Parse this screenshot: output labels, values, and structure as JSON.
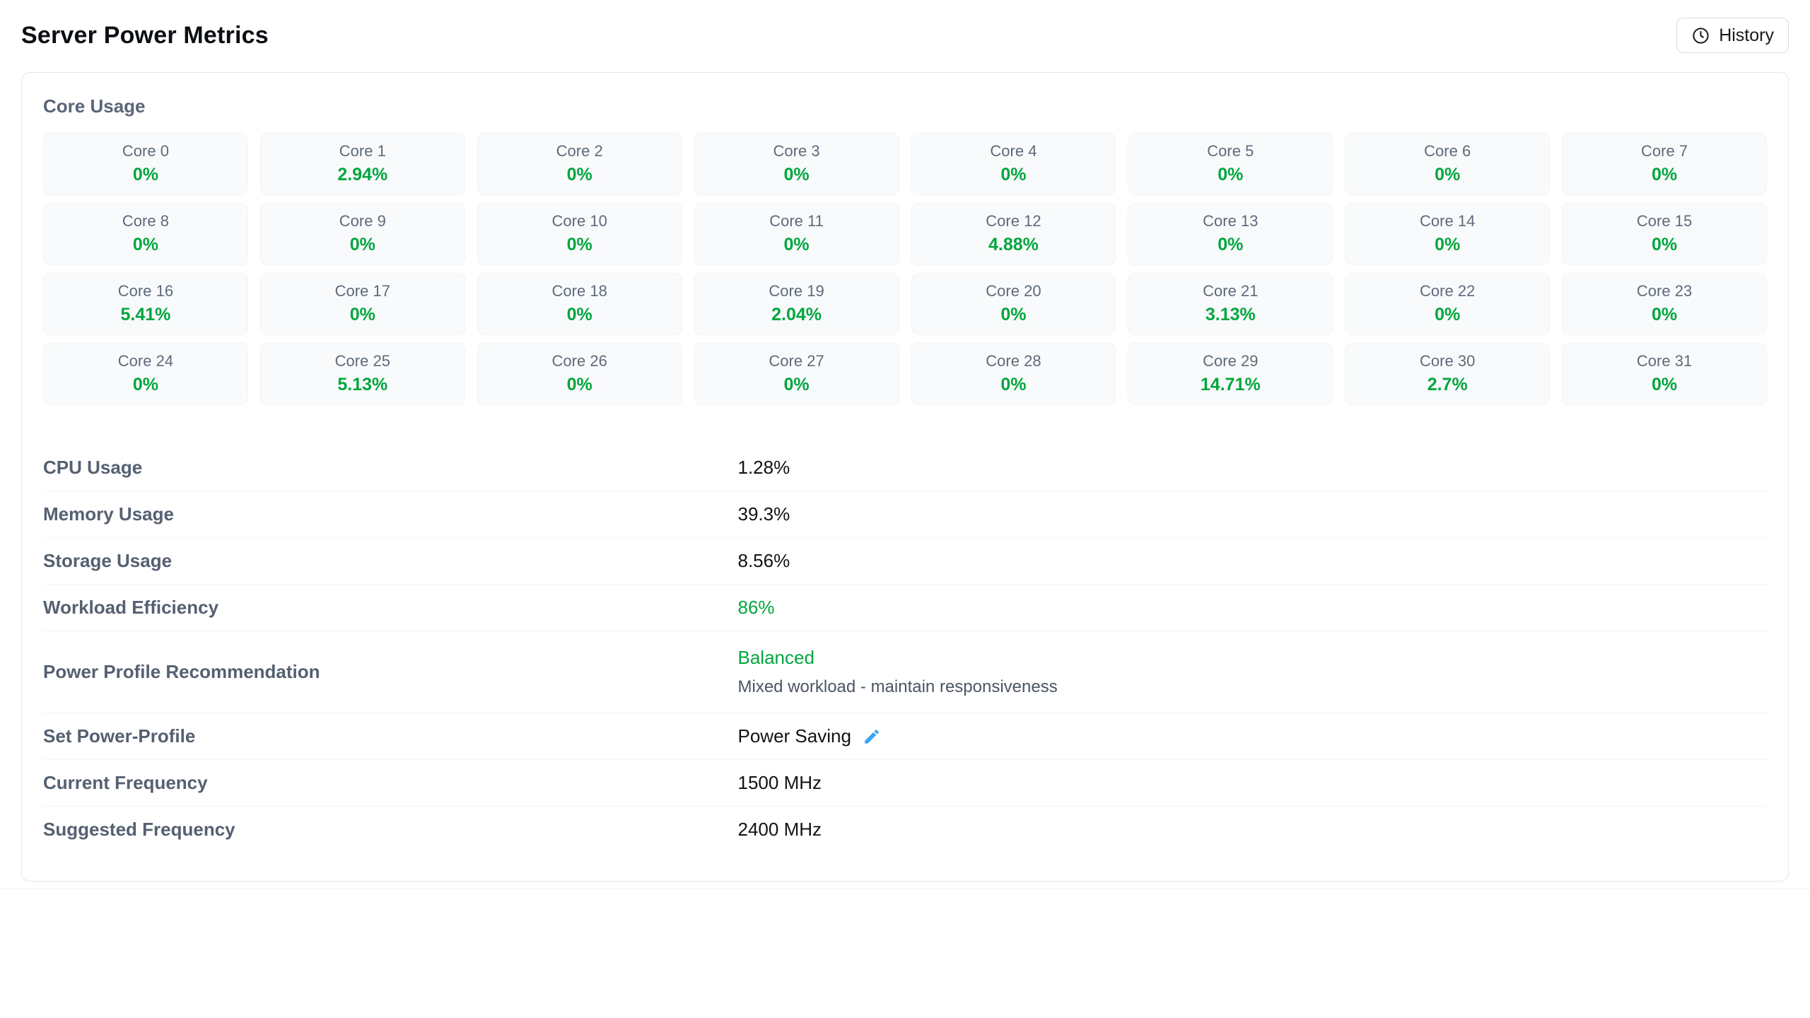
{
  "page": {
    "title": "Server Power Metrics"
  },
  "header": {
    "history_button": {
      "label": "History",
      "icon": "clock-icon"
    }
  },
  "card": {
    "section_title": "Core Usage",
    "cores": [
      {
        "label": "Core 0",
        "value": "0%"
      },
      {
        "label": "Core 1",
        "value": "2.94%"
      },
      {
        "label": "Core 2",
        "value": "0%"
      },
      {
        "label": "Core 3",
        "value": "0%"
      },
      {
        "label": "Core 4",
        "value": "0%"
      },
      {
        "label": "Core 5",
        "value": "0%"
      },
      {
        "label": "Core 6",
        "value": "0%"
      },
      {
        "label": "Core 7",
        "value": "0%"
      },
      {
        "label": "Core 8",
        "value": "0%"
      },
      {
        "label": "Core 9",
        "value": "0%"
      },
      {
        "label": "Core 10",
        "value": "0%"
      },
      {
        "label": "Core 11",
        "value": "0%"
      },
      {
        "label": "Core 12",
        "value": "4.88%"
      },
      {
        "label": "Core 13",
        "value": "0%"
      },
      {
        "label": "Core 14",
        "value": "0%"
      },
      {
        "label": "Core 15",
        "value": "0%"
      },
      {
        "label": "Core 16",
        "value": "5.41%"
      },
      {
        "label": "Core 17",
        "value": "0%"
      },
      {
        "label": "Core 18",
        "value": "0%"
      },
      {
        "label": "Core 19",
        "value": "2.04%"
      },
      {
        "label": "Core 20",
        "value": "0%"
      },
      {
        "label": "Core 21",
        "value": "3.13%"
      },
      {
        "label": "Core 22",
        "value": "0%"
      },
      {
        "label": "Core 23",
        "value": "0%"
      },
      {
        "label": "Core 24",
        "value": "0%"
      },
      {
        "label": "Core 25",
        "value": "5.13%"
      },
      {
        "label": "Core 26",
        "value": "0%"
      },
      {
        "label": "Core 27",
        "value": "0%"
      },
      {
        "label": "Core 28",
        "value": "0%"
      },
      {
        "label": "Core 29",
        "value": "14.71%"
      },
      {
        "label": "Core 30",
        "value": "2.7%"
      },
      {
        "label": "Core 31",
        "value": "0%"
      }
    ],
    "metrics": [
      {
        "id": "cpu-usage",
        "label": "CPU Usage",
        "value": "1.28%"
      },
      {
        "id": "memory-usage",
        "label": "Memory Usage",
        "value": "39.3%"
      },
      {
        "id": "storage-usage",
        "label": "Storage Usage",
        "value": "8.56%"
      },
      {
        "id": "workload-efficiency",
        "label": "Workload Efficiency",
        "value": "86%",
        "value_color": "green"
      },
      {
        "id": "power-profile-recommendation",
        "label": "Power Profile Recommendation",
        "value": "Balanced",
        "value_color": "green",
        "description": "Mixed workload - maintain responsiveness"
      },
      {
        "id": "set-power-profile",
        "label": "Set Power-Profile",
        "value": "Power Saving",
        "editable": true
      },
      {
        "id": "current-frequency",
        "label": "Current Frequency",
        "value": "1500 MHz"
      },
      {
        "id": "suggested-frequency",
        "label": "Suggested Frequency",
        "value": "2400 MHz"
      }
    ]
  },
  "colors": {
    "green": "#00a63e",
    "edit_icon_blue": "#3ba5f5"
  }
}
